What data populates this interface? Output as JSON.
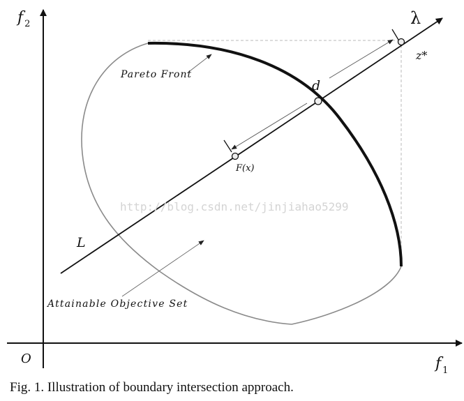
{
  "axes": {
    "y_label_main": "f",
    "y_label_sub": "2",
    "x_label_main": "f",
    "x_label_sub": "1",
    "origin_label": "O"
  },
  "labels": {
    "pareto_front": "Pareto Front",
    "attainable_set": "Attainable Objective Set",
    "line_L": "L",
    "lambda": "λ",
    "point_d": "d",
    "point_F": "F(x)",
    "point_z": "z*"
  },
  "watermark": "http://blog.csdn.net/jinjiahao5299",
  "caption": "Fig. 1.   Illustration of boundary intersection approach.",
  "colors": {
    "axis": "#111111",
    "pareto_front": "#111111",
    "attainable_boundary": "#8a8a8a",
    "dashed_guide": "#b8b8b8",
    "watermark": "#d4d4d4"
  }
}
